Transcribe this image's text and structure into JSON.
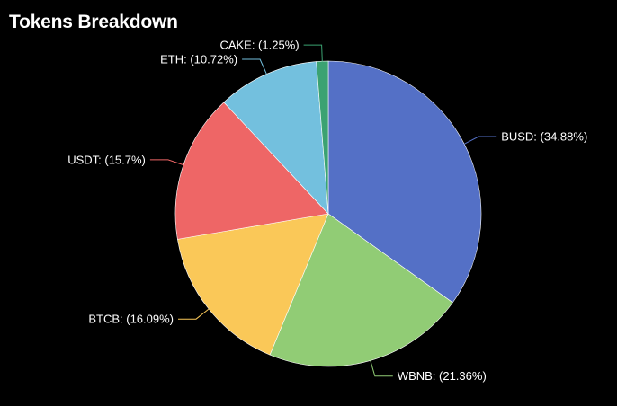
{
  "title": "Tokens Breakdown",
  "chart_data": {
    "type": "pie",
    "title": "Tokens Breakdown",
    "start_angle_deg": 0,
    "direction": "clockwise",
    "slices": [
      {
        "name": "BUSD",
        "value": 34.88,
        "label": "BUSD: (34.88%)",
        "color": "#5470c6"
      },
      {
        "name": "WBNB",
        "value": 21.36,
        "label": "WBNB: (21.36%)",
        "color": "#91cc75"
      },
      {
        "name": "BTCB",
        "value": 16.09,
        "label": "BTCB: (16.09%)",
        "color": "#fac858"
      },
      {
        "name": "USDT",
        "value": 15.7,
        "label": "USDT: (15.7%)",
        "color": "#ee6666"
      },
      {
        "name": "ETH",
        "value": 10.72,
        "label": "ETH: (10.72%)",
        "color": "#73c0de"
      },
      {
        "name": "CAKE",
        "value": 1.25,
        "label": "CAKE: (1.25%)",
        "color": "#3ba272"
      }
    ]
  }
}
